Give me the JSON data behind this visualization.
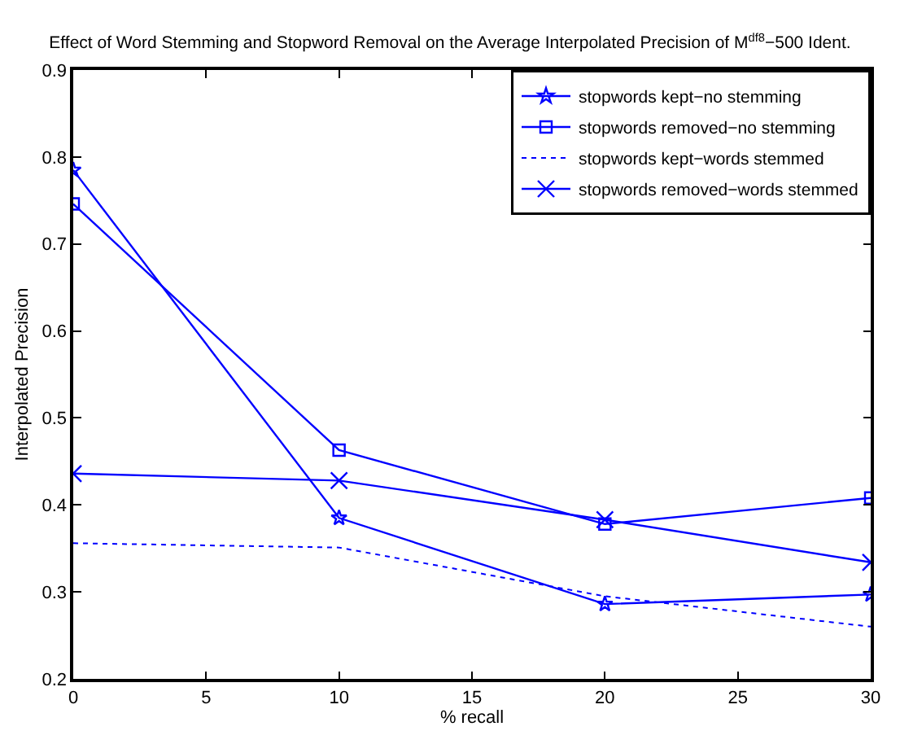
{
  "chart_data": {
    "type": "line",
    "title": "Effect of Word Stemming and Stopword Removal on the Average Interpolated Precision of M$^{df8}$−500 Ident.",
    "xlabel": "% recall",
    "ylabel": "Interpolated Precision",
    "x": [
      0,
      10,
      20,
      30
    ],
    "series": [
      {
        "name": "stopwords kept−no stemming",
        "color": "#0000ff",
        "marker": "star",
        "line_style": "solid",
        "values": [
          0.785,
          0.385,
          0.286,
          0.297
        ]
      },
      {
        "name": "stopwords removed−no stemming",
        "color": "#0000ff",
        "marker": "square",
        "line_style": "solid",
        "values": [
          0.746,
          0.463,
          0.378,
          0.408
        ]
      },
      {
        "name": "stopwords kept−words stemmed",
        "color": "#0000ff",
        "marker": "none",
        "line_style": "dotted",
        "values": [
          0.356,
          0.351,
          0.295,
          0.26
        ]
      },
      {
        "name": "stopwords removed−words stemmed",
        "color": "#0000ff",
        "marker": "cross",
        "line_style": "solid",
        "values": [
          0.436,
          0.428,
          0.383,
          0.334
        ]
      }
    ],
    "xlim": [
      0,
      30
    ],
    "xticks": [
      0,
      5,
      10,
      15,
      20,
      25,
      30
    ],
    "ylim": [
      0.2,
      0.9
    ],
    "yticks": [
      0.2,
      0.3,
      0.4,
      0.5,
      0.6,
      0.7,
      0.8,
      0.9
    ],
    "legend": "top right"
  }
}
